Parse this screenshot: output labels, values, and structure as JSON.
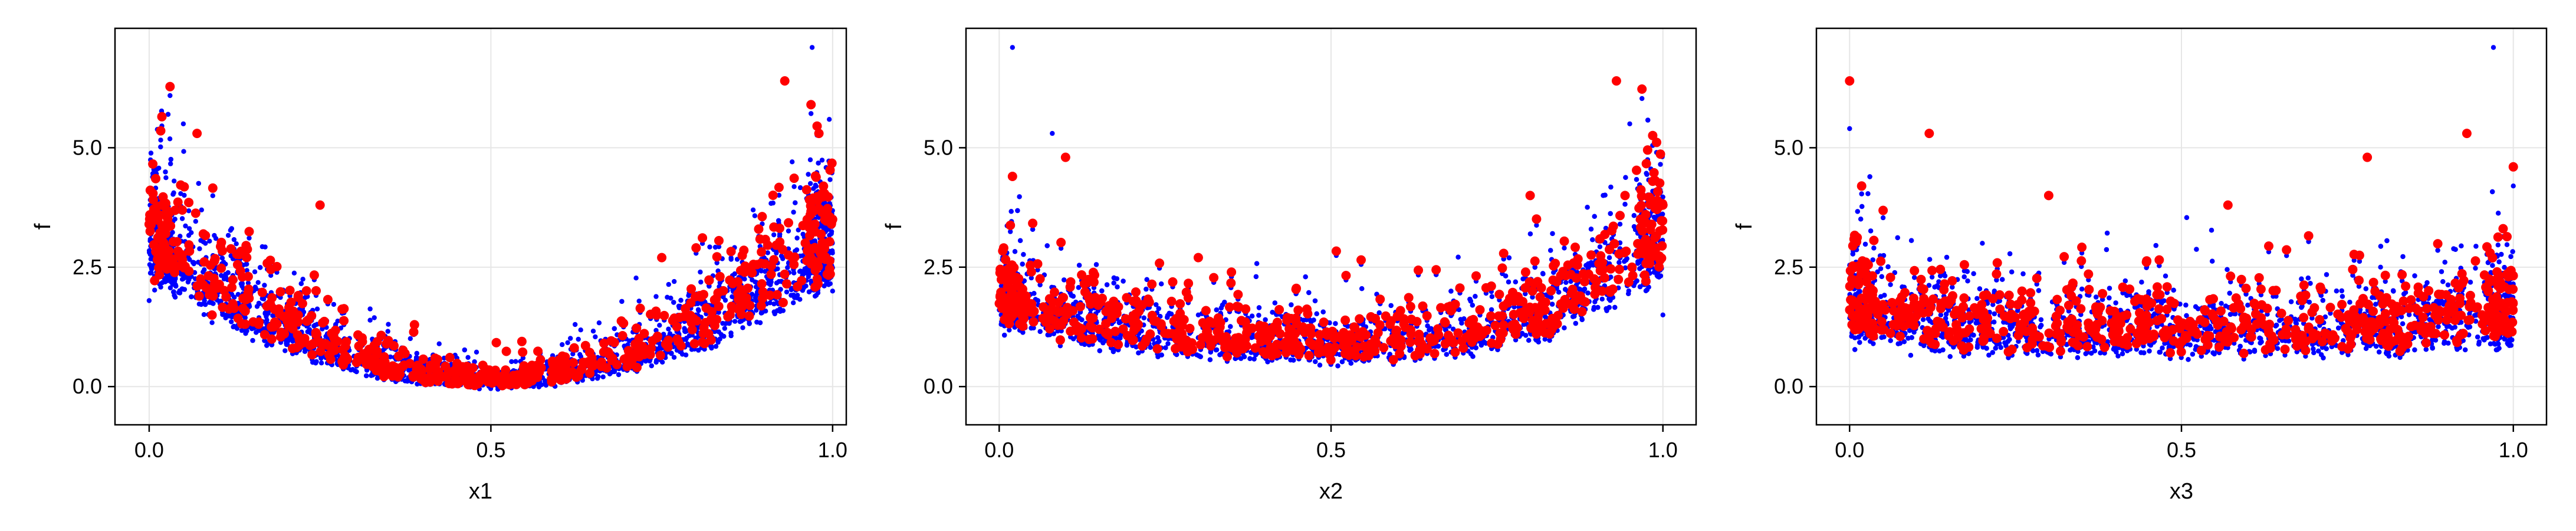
{
  "chart_data": [
    {
      "type": "scatter",
      "xlabel": "x1",
      "ylabel": "f",
      "xlim": [
        -0.05,
        1.02
      ],
      "ylim": [
        -0.8,
        7.5
      ],
      "xticks": [
        "0.0",
        "0.5",
        "1.0"
      ],
      "yticks": [
        "0.0",
        "2.5",
        "5.0"
      ],
      "xtick_values": [
        0,
        0.5,
        1.0
      ],
      "ytick_values": [
        0,
        2.5,
        5.0
      ],
      "grid": true,
      "pattern": "u-shape: f high near x=0 and x=1, minimum near x=0.5",
      "series": [
        {
          "color": "#0000ff",
          "marker": "small-dot",
          "count": 3000,
          "sample_points": [
            [
              0.0,
              1.8
            ],
            [
              0.05,
              5.5
            ],
            [
              0.2,
              1.2
            ],
            [
              0.4,
              0.3
            ],
            [
              0.5,
              0.1
            ],
            [
              0.6,
              0.2
            ],
            [
              0.8,
              1.5
            ],
            [
              0.97,
              7.1
            ],
            [
              1.0,
              2.0
            ]
          ]
        },
        {
          "color": "#ff0000",
          "marker": "large-dot",
          "count": 700,
          "sample_points": [
            [
              0.0,
              3.4
            ],
            [
              0.07,
              5.3
            ],
            [
              0.25,
              3.8
            ],
            [
              0.45,
              0.4
            ],
            [
              0.55,
              0.2
            ],
            [
              0.75,
              2.7
            ],
            [
              0.93,
              6.4
            ],
            [
              0.98,
              5.3
            ],
            [
              1.0,
              3.5
            ]
          ]
        }
      ]
    },
    {
      "type": "scatter",
      "xlabel": "x2",
      "ylabel": "f",
      "xlim": [
        -0.05,
        1.05
      ],
      "ylim": [
        -0.8,
        7.5
      ],
      "xticks": [
        "0.0",
        "0.5",
        "1.0"
      ],
      "yticks": [
        "0.0",
        "2.5",
        "5.0"
      ],
      "xtick_values": [
        0,
        0.5,
        1.0
      ],
      "ytick_values": [
        0,
        2.5,
        5.0
      ],
      "grid": true,
      "pattern": "mild rise toward x=0 and strong rise toward x=1",
      "series": [
        {
          "color": "#0000ff",
          "marker": "small-dot",
          "count": 3000,
          "sample_points": [
            [
              0.02,
              7.1
            ],
            [
              0.08,
              5.3
            ],
            [
              0.3,
              1.5
            ],
            [
              0.5,
              0.6
            ],
            [
              0.7,
              1.0
            ],
            [
              0.95,
              5.5
            ],
            [
              1.0,
              1.5
            ]
          ]
        },
        {
          "color": "#ff0000",
          "marker": "large-dot",
          "count": 700,
          "sample_points": [
            [
              0.02,
              4.4
            ],
            [
              0.1,
              4.8
            ],
            [
              0.3,
              2.7
            ],
            [
              0.5,
              0.8
            ],
            [
              0.8,
              4.0
            ],
            [
              0.93,
              6.4
            ],
            [
              1.0,
              3.8
            ]
          ]
        }
      ]
    },
    {
      "type": "scatter",
      "xlabel": "x3",
      "ylabel": "f",
      "xlim": [
        -0.05,
        1.05
      ],
      "ylim": [
        -0.8,
        7.5
      ],
      "xticks": [
        "0.0",
        "0.5",
        "1.0"
      ],
      "yticks": [
        "0.0",
        "2.5",
        "5.0"
      ],
      "xtick_values": [
        0,
        0.5,
        1.0
      ],
      "ytick_values": [
        0,
        2.5,
        5.0
      ],
      "grid": true,
      "pattern": "roughly uniform spread across x, slight rise at edges",
      "series": [
        {
          "color": "#0000ff",
          "marker": "small-dot",
          "count": 3000,
          "sample_points": [
            [
              0.0,
              5.4
            ],
            [
              0.2,
              3.0
            ],
            [
              0.5,
              1.0
            ],
            [
              0.8,
              2.5
            ],
            [
              0.97,
              7.1
            ],
            [
              1.0,
              4.2
            ]
          ]
        },
        {
          "color": "#ff0000",
          "marker": "large-dot",
          "count": 700,
          "sample_points": [
            [
              0.0,
              6.4
            ],
            [
              0.12,
              5.3
            ],
            [
              0.3,
              4.0
            ],
            [
              0.57,
              3.8
            ],
            [
              0.78,
              4.8
            ],
            [
              0.93,
              5.3
            ],
            [
              1.0,
              4.6
            ]
          ]
        }
      ]
    }
  ]
}
